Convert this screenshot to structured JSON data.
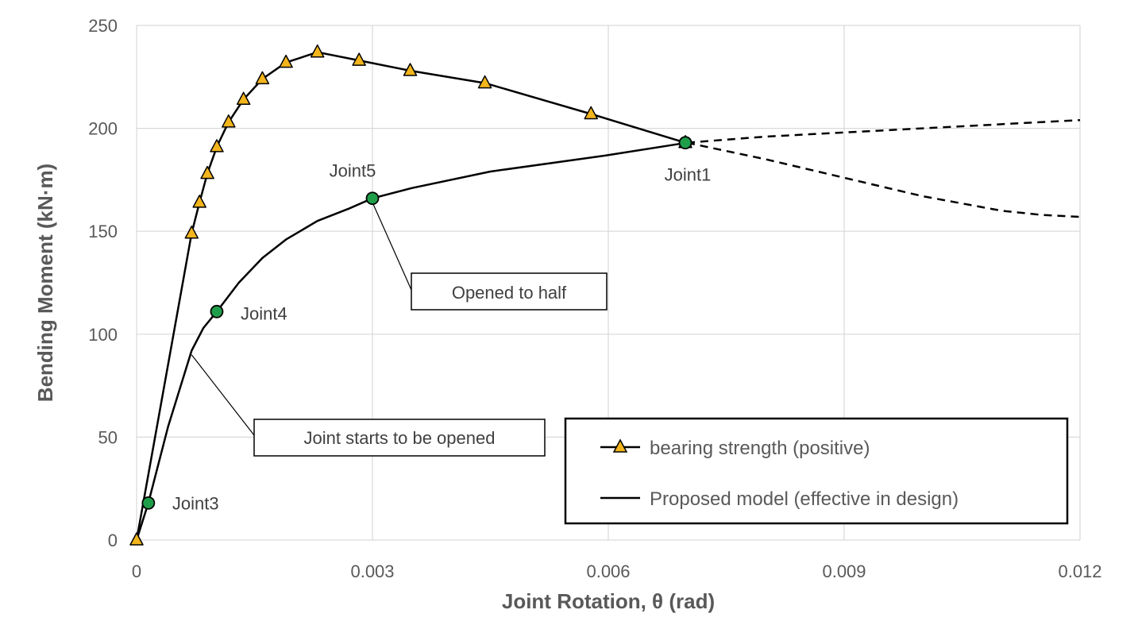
{
  "chart_data": {
    "type": "line",
    "xlabel": "Joint Rotation, θ (rad)",
    "ylabel": "Bending Moment (kN·m)",
    "xlim": [
      0,
      0.012
    ],
    "ylim": [
      0,
      250
    ],
    "x_ticks": [
      0,
      0.003,
      0.006,
      0.009,
      0.012
    ],
    "x_tick_labels": [
      "0",
      "0.003",
      "0.006",
      "0.009",
      "0.012"
    ],
    "y_ticks": [
      0,
      50,
      100,
      150,
      200,
      250
    ],
    "y_tick_labels": [
      "0",
      "50",
      "100",
      "150",
      "200",
      "250"
    ],
    "grid": true,
    "series": [
      {
        "name": "bearing strength (positive)",
        "line_style": "solid",
        "marker": "triangle",
        "marker_color": "#f2b51c",
        "line_color": "#000000",
        "x": [
          0,
          0.0007,
          0.0008,
          0.0009,
          0.00102,
          0.00117,
          0.00136,
          0.0016,
          0.0019,
          0.0023,
          0.00283,
          0.00348,
          0.00443,
          0.00578,
          0.00698
        ],
        "y": [
          0,
          149,
          164,
          178,
          191,
          203,
          214,
          224,
          232,
          237,
          233,
          228,
          222,
          207,
          193
        ]
      },
      {
        "name": "Proposed model (effective in design)",
        "line_style": "solid",
        "marker": "none",
        "line_color": "#000000",
        "x": [
          0,
          0.00015,
          0.0004,
          0.0007,
          0.00085,
          0.00102,
          0.0013,
          0.0016,
          0.0019,
          0.0023,
          0.0027,
          0.003,
          0.0035,
          0.0045,
          0.006,
          0.007
        ],
        "y": [
          0,
          18,
          55,
          92,
          103,
          111,
          125,
          137,
          146,
          155,
          161,
          166,
          171,
          179,
          187,
          193
        ]
      },
      {
        "line_style": "dashed",
        "marker": "none",
        "line_color": "#000000",
        "x": [
          0.007,
          0.008,
          0.009,
          0.01,
          0.011,
          0.012
        ],
        "y": [
          193,
          196,
          198,
          200,
          202,
          204
        ]
      },
      {
        "line_style": "dashed",
        "marker": "none",
        "line_color": "#000000",
        "x": [
          0.007,
          0.008,
          0.009,
          0.01,
          0.011,
          0.0115,
          0.012
        ],
        "y": [
          193,
          185,
          176,
          167,
          160,
          158,
          157
        ]
      }
    ],
    "points": [
      {
        "label": "Joint3",
        "x": 0.00015,
        "y": 18
      },
      {
        "label": "Joint4",
        "x": 0.00102,
        "y": 111
      },
      {
        "label": "Joint5",
        "x": 0.003,
        "y": 166
      },
      {
        "label": "Joint1",
        "x": 0.00698,
        "y": 193
      }
    ],
    "point_color": "#1f9e4a",
    "annotations": [
      {
        "text": "Opened to half",
        "target_x": 0.003,
        "target_y": 164
      },
      {
        "text": "Joint starts to be opened",
        "target_x": 0.0007,
        "target_y": 90
      }
    ],
    "legend_placement": "bottom-right"
  }
}
